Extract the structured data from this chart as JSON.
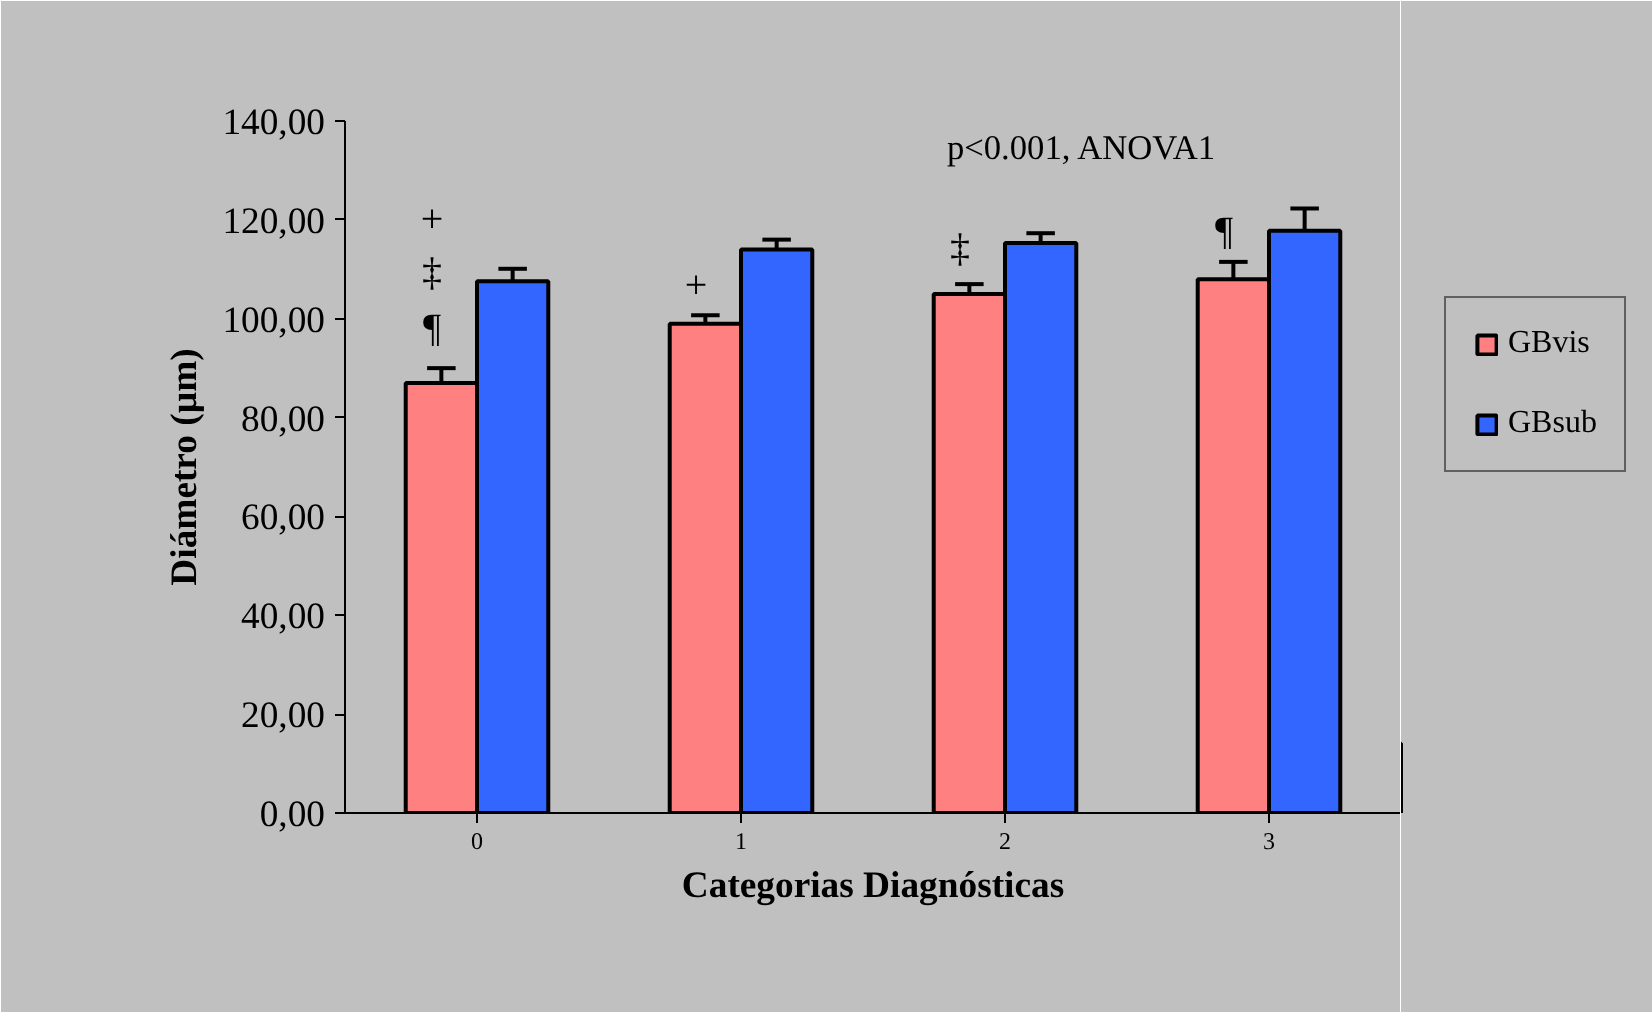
{
  "chart_data": {
    "type": "bar",
    "xlabel": "Categorias Diagnósticas",
    "ylabel": "Diámetro (µm)",
    "categories": [
      "0",
      "1",
      "2",
      "3"
    ],
    "series": [
      {
        "name": "GBvis",
        "color": "#ff8080",
        "values": [
          87,
          99,
          105,
          108
        ],
        "errors": [
          3,
          1.7,
          2,
          3.5
        ]
      },
      {
        "name": "GBsub",
        "color": "#3366ff",
        "values": [
          107.6,
          114,
          115.3,
          117.8
        ],
        "errors": [
          2.5,
          2,
          2,
          4.5
        ]
      }
    ],
    "ylim": [
      0,
      140
    ],
    "yticks": [
      {
        "value": 0,
        "label": "0,00"
      },
      {
        "value": 20,
        "label": "20,00"
      },
      {
        "value": 40,
        "label": "40,00"
      },
      {
        "value": 60,
        "label": "60,00"
      },
      {
        "value": 80,
        "label": "80,00"
      },
      {
        "value": 100,
        "label": "100,00"
      },
      {
        "value": 120,
        "label": "120,00"
      },
      {
        "value": 140,
        "label": "140,00"
      }
    ],
    "annotations": [
      "p<0.001, ANOVA1",
      "+",
      "‡",
      "¶",
      "+",
      "‡",
      "¶"
    ],
    "legend": "right",
    "grid": false
  }
}
